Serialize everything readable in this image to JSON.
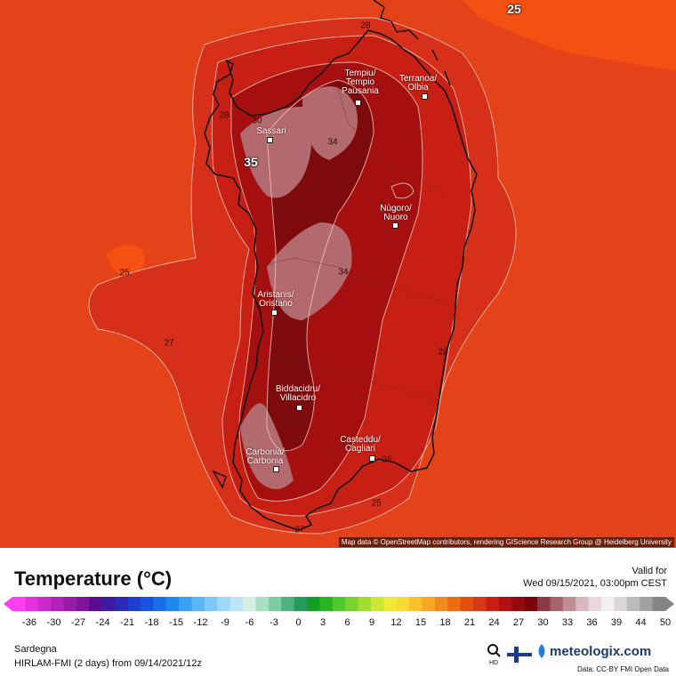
{
  "map": {
    "attribution": "Map data © OpenStreetMap contributors, rendering GIScience Research Group @ Heidelberg University",
    "cities": [
      {
        "name": "Tempiu/\nTempio\nPausania"
      },
      {
        "name": "Terranoa/\nOlbia"
      },
      {
        "name": "Sassari"
      },
      {
        "name": "Nùgoro/\nNuoro"
      },
      {
        "name": "Aristanis/\nOristano"
      },
      {
        "name": "Biddacidru/\nVillacidro"
      },
      {
        "name": "Casteddu/\nCagliari"
      },
      {
        "name": "Carbonia/\nCarbonia"
      }
    ],
    "isotherm_labels": [
      "25",
      "25",
      "27",
      "28",
      "34",
      "34",
      "28",
      "26",
      "27",
      "28",
      "30"
    ],
    "big_labels": [
      "25",
      "35"
    ],
    "colors": {
      "sea": "#e4431a",
      "t27": "#d6301a",
      "t30": "#c81f14",
      "t32": "#a50f10",
      "t34": "#7d0a0c",
      "t35": "#b26a6e",
      "t25": "#f35012"
    }
  },
  "footer": {
    "title": "Temperature (°C)",
    "valid_label": "Valid for",
    "valid_time": "Wed 09/15/2021, 03:00pm CEST",
    "region": "Sardegna",
    "model": "HIRLAM-FMI (2 days) from 09/14/2021/12z",
    "brand": "meteologix.com",
    "data_source": "Data: CC-BY FMI Open Data",
    "zoom_icon": "magnifier-hd-icon",
    "flag_icon": "finland-flag-icon",
    "logo_icon": "meteologix-logo-icon"
  },
  "legend": {
    "ticks": [
      "-36",
      "-30",
      "-27",
      "-24",
      "-21",
      "-18",
      "-15",
      "-12",
      "-9",
      "-6",
      "-3",
      "0",
      "3",
      "6",
      "9",
      "12",
      "15",
      "18",
      "21",
      "24",
      "27",
      "30",
      "33",
      "36",
      "39",
      "44",
      "50"
    ],
    "colors": [
      "#ff3ff0",
      "#e232de",
      "#c92bcc",
      "#b122ba",
      "#981aa8",
      "#7e149b",
      "#5a0c90",
      "#3e1aa0",
      "#2a2ab4",
      "#1e3ecf",
      "#1654e0",
      "#1a6ee8",
      "#1f88ef",
      "#3aa0f2",
      "#5ab6f4",
      "#7ec8f6",
      "#9ed8f6",
      "#bce6f6",
      "#d4efe6",
      "#a8e0c4",
      "#7ccca4",
      "#4eb47e",
      "#259c5a",
      "#149e24",
      "#2ab424",
      "#4ec82a",
      "#76d42c",
      "#a2de2e",
      "#cce634",
      "#eeea36",
      "#fad934",
      "#f8c02c",
      "#f6a624",
      "#f08a1c",
      "#ea6c14",
      "#e2500e",
      "#d6381a",
      "#c81f14",
      "#b01210",
      "#940a0e",
      "#7a060c",
      "#8e3a44",
      "#a8626c",
      "#c08e96",
      "#d8b8be",
      "#ead8dc",
      "#f4eef0",
      "#d8d8d8",
      "#bcbcbc",
      "#a0a0a0",
      "#848484"
    ]
  }
}
